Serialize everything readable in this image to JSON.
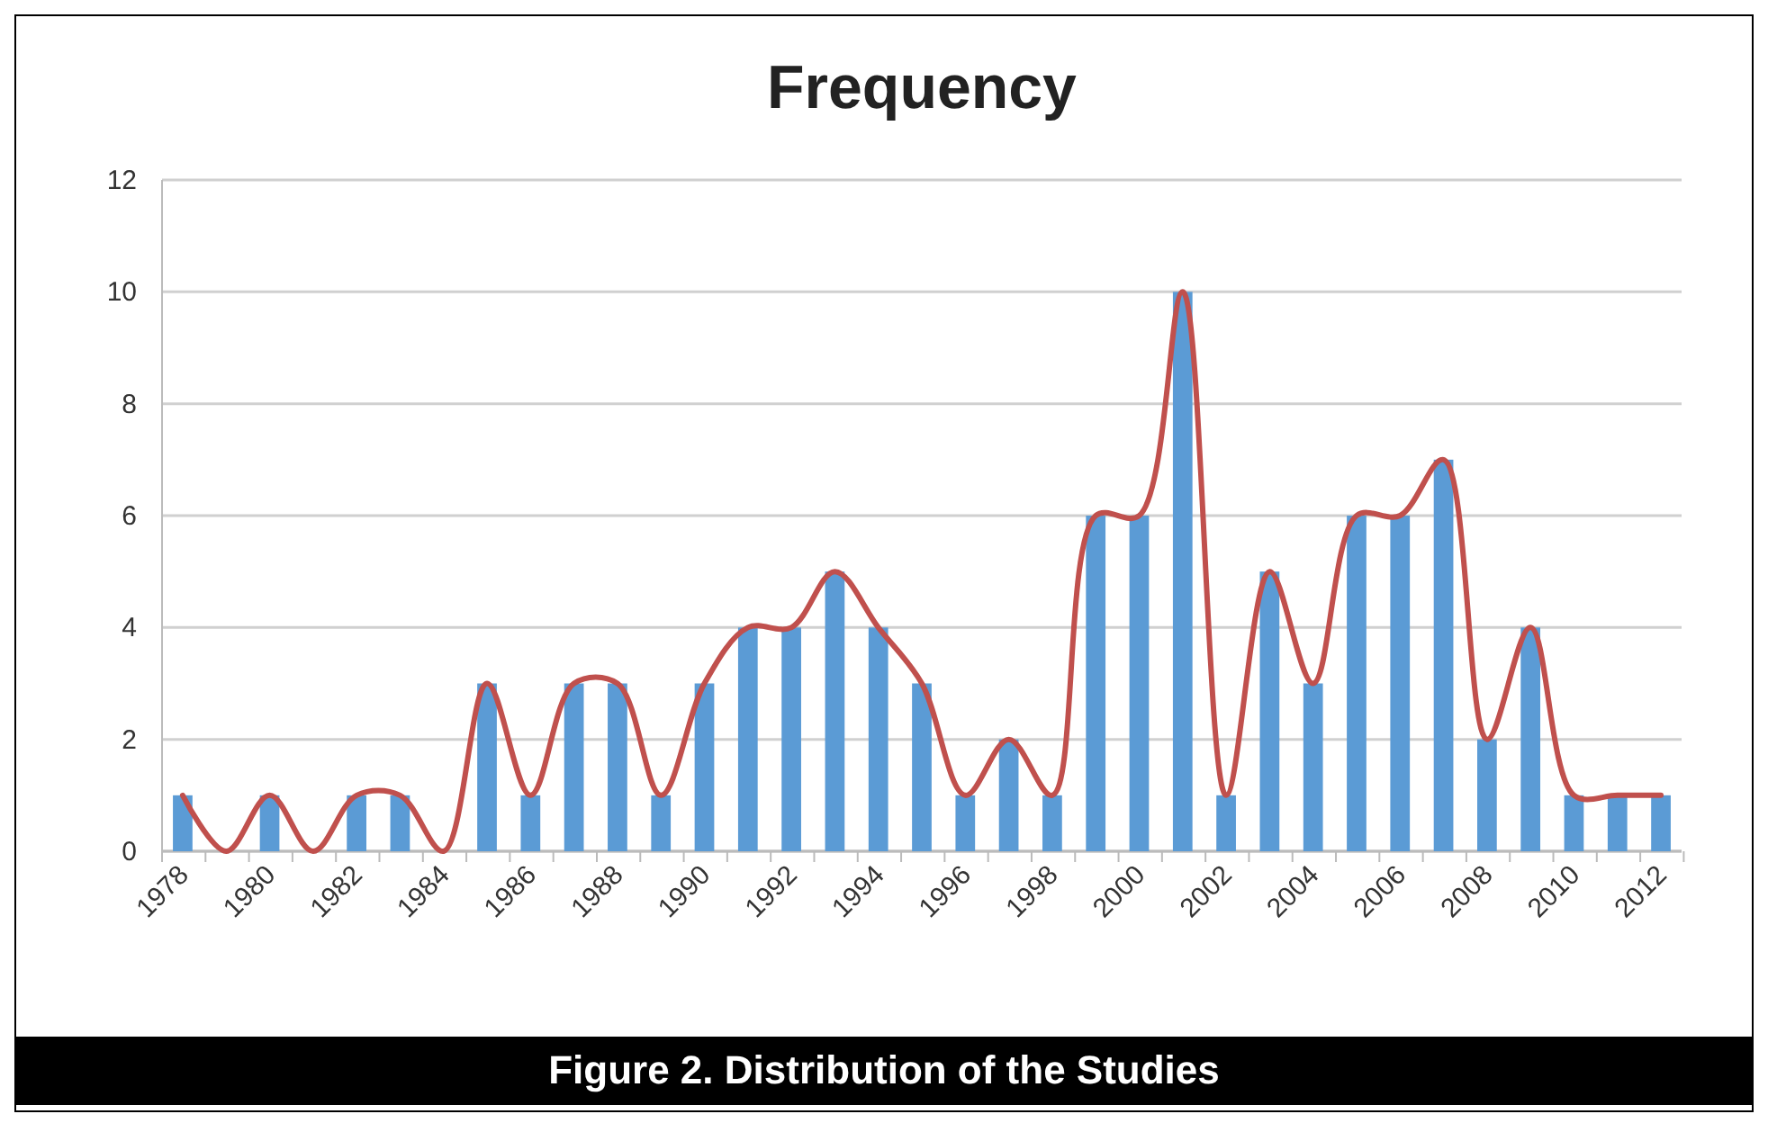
{
  "chart_data": {
    "type": "bar",
    "title": "Frequency",
    "categories": [
      "1978",
      null,
      "1980",
      null,
      "1982",
      null,
      "1984",
      null,
      "1986",
      null,
      "1988",
      null,
      "1990",
      null,
      "1992",
      null,
      "1994",
      null,
      "1996",
      null,
      "1998",
      null,
      "2000",
      null,
      "2002",
      null,
      "2004",
      null,
      "2006",
      null,
      "2008",
      null,
      "2010",
      null,
      "2012"
    ],
    "series": [
      {
        "color": "#5b9bd5",
        "values": [
          1,
          0,
          1,
          0,
          1,
          1,
          0,
          3,
          1,
          3,
          3,
          1,
          3,
          4,
          4,
          5,
          4,
          3,
          1,
          2,
          1,
          6,
          6,
          10,
          1,
          5,
          3,
          6,
          6,
          7,
          2,
          4,
          1,
          1,
          1
        ]
      },
      {
        "type": "line",
        "color": "#c0504d",
        "values": [
          1,
          0,
          1,
          0,
          1,
          1,
          0,
          3,
          1,
          3,
          3,
          1,
          3,
          4,
          4,
          5,
          4,
          3,
          1,
          2,
          1,
          6,
          6,
          10,
          1,
          5,
          3,
          6,
          6,
          7,
          2,
          4,
          1,
          1,
          1
        ]
      }
    ],
    "ylim": [
      0,
      12
    ],
    "yticks": [
      0,
      2,
      4,
      6,
      8,
      10,
      12
    ],
    "grid": "y",
    "annotations": [
      "Figure 2. Distribution of the Studies"
    ]
  }
}
